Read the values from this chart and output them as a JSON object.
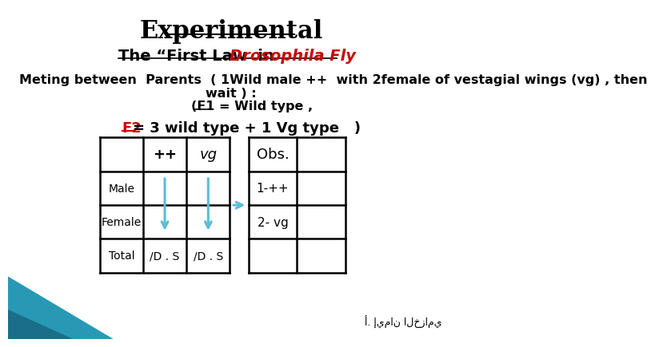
{
  "title": "Experimental",
  "subtitle_black": "The “First Law  in ",
  "subtitle_red": "Drosophila Fly",
  "body_line1": "Meting between  Parents  ( 1Wild male ++  with 2female of vestagial wings (vg) , then",
  "body_line2": "wait ) :",
  "body_line3": "(F1 = Wild type ,",
  "f2_red": "F2",
  "f2_rest": "= 3 wild type + 1 Vg type   )",
  "bg_color": "#ffffff",
  "title_color": "#000000",
  "subtitle_red_color": "#cc0000",
  "f2_red_color": "#cc0000",
  "body_color": "#000000",
  "arrow_color": "#5bbcd6",
  "connector_color": "#5bbcd6",
  "watermark": "أ. إيمان الخزامي",
  "left_row_labels": [
    "Male",
    "Female",
    "Total"
  ],
  "left_total_vals": [
    "/D . S",
    "/D . S"
  ],
  "right_row_vals": [
    "1-++",
    "2- vg"
  ],
  "teal_light": "#2899b5",
  "teal_dark": "#1a6e8a"
}
